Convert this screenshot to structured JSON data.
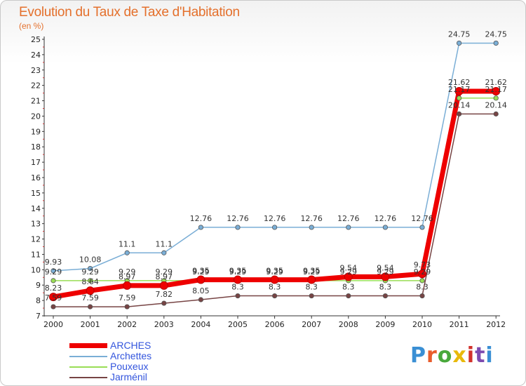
{
  "header": {
    "title": "Evolution du Taux de Taxe d'Habitation",
    "unit": "(en %)"
  },
  "logo": {
    "text": "Proxiti",
    "letter_colors": [
      "#3a8fd4",
      "#e85c2c",
      "#49a83b",
      "#e8b90c",
      "#d2322c",
      "#7d4bb0",
      "#3a8fd4"
    ]
  },
  "chart_data": {
    "type": "line",
    "x": [
      "2000",
      "2001",
      "2002",
      "2003",
      "2004",
      "2005",
      "2006",
      "2007",
      "2008",
      "2009",
      "2010",
      "2011",
      "2012"
    ],
    "ylim": [
      7,
      25
    ],
    "yticks": [
      7,
      8,
      9,
      10,
      11,
      12,
      13,
      14,
      15,
      16,
      17,
      18,
      19,
      20,
      21,
      22,
      23,
      24,
      25
    ],
    "grid": false,
    "legend_position": "bottom-left",
    "series": [
      {
        "name": "ARCHES",
        "color": "#ee0000",
        "values": [
          8.23,
          8.64,
          8.97,
          8.97,
          9.35,
          9.35,
          9.35,
          9.35,
          9.54,
          9.54,
          9.73,
          21.62,
          21.62
        ],
        "labels": [
          "8.23",
          "8.64",
          "8.97",
          "8.97",
          "9.35",
          "9.35",
          "9.35",
          "9.35",
          "9.54",
          "9.54",
          "9.73",
          "21.62",
          "21.62"
        ]
      },
      {
        "name": "Archettes",
        "color": "#7aaed6",
        "values": [
          9.93,
          10.08,
          11.1,
          11.1,
          12.76,
          12.76,
          12.76,
          12.76,
          12.76,
          12.76,
          12.76,
          24.75,
          24.75
        ],
        "labels": [
          "9.93",
          "10.08",
          "11.1",
          "11.1",
          "12.76",
          "12.76",
          "12.76",
          "12.76",
          "12.76",
          "12.76",
          "12.76",
          "24.75",
          "24.75"
        ]
      },
      {
        "name": "Pouxeux",
        "color": "#99dd55",
        "values": [
          9.29,
          9.29,
          9.29,
          9.29,
          9.29,
          9.29,
          9.29,
          9.29,
          9.29,
          9.29,
          9.29,
          21.17,
          21.17
        ],
        "labels": [
          "9.29",
          "9.29",
          "9.29",
          "9.29",
          "9.29",
          "9.29",
          "9.29",
          "9.29",
          "9.29",
          "9.29",
          "9.29",
          "21.17",
          "21.17"
        ]
      },
      {
        "name": "Jarménil",
        "color": "#774444",
        "values": [
          7.59,
          7.59,
          7.59,
          7.82,
          8.05,
          8.3,
          8.3,
          8.3,
          8.3,
          8.3,
          8.3,
          20.14,
          20.14
        ],
        "labels": [
          "7.59",
          "7.59",
          "7.59",
          "7.82",
          "8.05",
          "8.3",
          "8.3",
          "8.3",
          "8.3",
          "8.3",
          "8.3",
          "20.14",
          "20.14"
        ]
      }
    ]
  }
}
